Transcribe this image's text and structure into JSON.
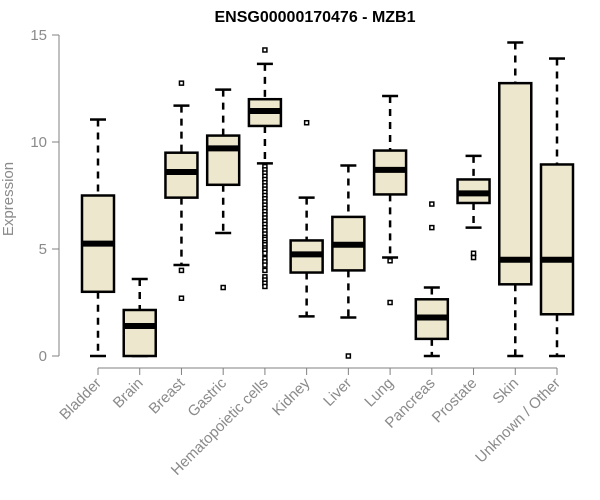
{
  "chart_data": {
    "type": "boxplot",
    "title": "ENSG00000170476 - MZB1",
    "xlabel": "",
    "ylabel": "Expression",
    "ylim": [
      0,
      15
    ],
    "yticks": [
      "0",
      "5",
      "10",
      "15"
    ],
    "grid": false,
    "box_fill": "#ede7cd",
    "line_color": "#000000",
    "axis_color": "#808080",
    "categories": [
      "Bladder",
      "Brain",
      "Breast",
      "Gastric",
      "Hematopoietic cells",
      "Kidney",
      "Liver",
      "Lung",
      "Pancreas",
      "Prostate",
      "Skin",
      "Unknown / Other"
    ],
    "boxes": [
      {
        "name": "Bladder",
        "whisker_low": 0,
        "q1": 3.0,
        "median": 5.25,
        "q3": 7.5,
        "whisker_high": 11.05,
        "outliers": []
      },
      {
        "name": "Brain",
        "whisker_low": 0,
        "q1": 0,
        "median": 1.4,
        "q3": 2.15,
        "whisker_high": 3.6,
        "outliers": []
      },
      {
        "name": "Breast",
        "whisker_low": 4.25,
        "q1": 7.4,
        "median": 8.6,
        "q3": 9.5,
        "whisker_high": 11.7,
        "outliers": [
          12.75,
          4.0,
          2.7
        ]
      },
      {
        "name": "Gastric",
        "whisker_low": 5.75,
        "q1": 8.0,
        "median": 9.7,
        "q3": 10.3,
        "whisker_high": 12.45,
        "outliers": [
          3.2
        ]
      },
      {
        "name": "Hematopoietic cells",
        "whisker_low": 9.0,
        "q1": 10.75,
        "median": 11.45,
        "q3": 12.0,
        "whisker_high": 13.65,
        "outliers": [
          14.3,
          8.85,
          8.7,
          8.55,
          8.4,
          8.25,
          8.1,
          7.95,
          7.8,
          7.65,
          7.5,
          7.35,
          7.2,
          7.05,
          6.9,
          6.75,
          6.6,
          6.45,
          6.3,
          6.15,
          6.0,
          5.85,
          5.7,
          5.55,
          5.45,
          5.3,
          5.2,
          5.05,
          4.95,
          4.8,
          4.55,
          4.4,
          4.25,
          4.0,
          3.7,
          3.55,
          3.4,
          3.25
        ]
      },
      {
        "name": "Kidney",
        "whisker_low": 1.85,
        "q1": 3.9,
        "median": 4.75,
        "q3": 5.4,
        "whisker_high": 7.4,
        "outliers": [
          10.9
        ]
      },
      {
        "name": "Liver",
        "whisker_low": 1.8,
        "q1": 4.0,
        "median": 5.2,
        "q3": 6.5,
        "whisker_high": 8.9,
        "outliers": [
          0.0
        ]
      },
      {
        "name": "Lung",
        "whisker_low": 4.6,
        "q1": 7.55,
        "median": 8.7,
        "q3": 9.6,
        "whisker_high": 12.15,
        "outliers": [
          4.45,
          2.5
        ]
      },
      {
        "name": "Pancreas",
        "whisker_low": 0,
        "q1": 0.8,
        "median": 1.8,
        "q3": 2.65,
        "whisker_high": 3.2,
        "outliers": [
          7.1,
          6.0
        ]
      },
      {
        "name": "Prostate",
        "whisker_low": 6.0,
        "q1": 7.15,
        "median": 7.6,
        "q3": 8.25,
        "whisker_high": 9.35,
        "outliers": [
          4.8,
          4.6
        ]
      },
      {
        "name": "Skin",
        "whisker_low": 0,
        "q1": 3.35,
        "median": 4.5,
        "q3": 12.75,
        "whisker_high": 14.65,
        "outliers": []
      },
      {
        "name": "Unknown / Other",
        "whisker_low": 0,
        "q1": 1.95,
        "median": 4.5,
        "q3": 8.95,
        "whisker_high": 13.9,
        "outliers": []
      }
    ]
  }
}
